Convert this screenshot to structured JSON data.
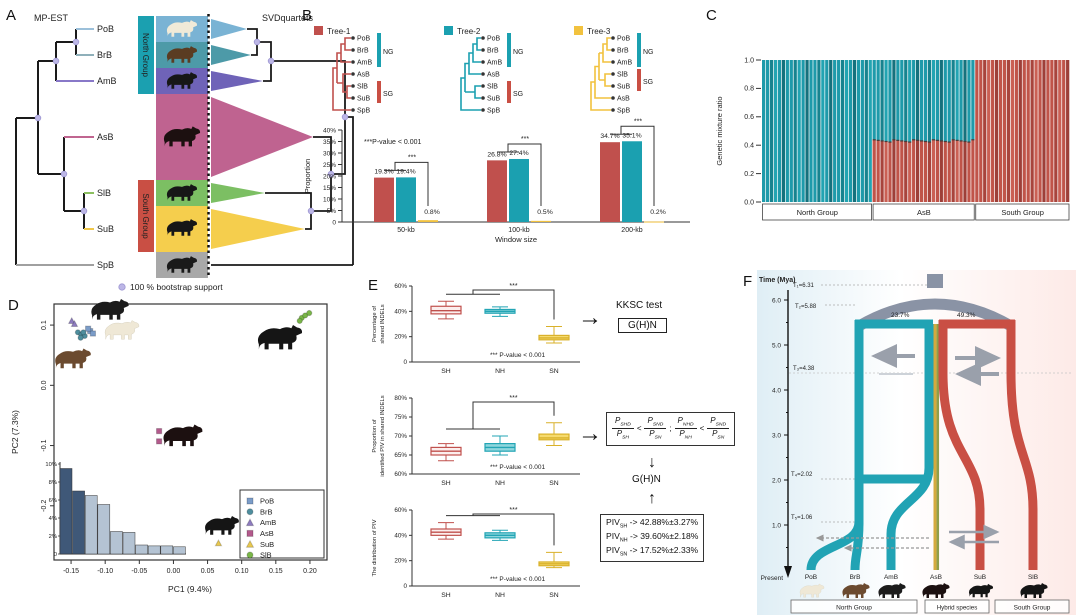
{
  "icons": {
    "arrow_right": "→",
    "arrow_down": "↓",
    "arrow_up": "↑"
  },
  "colors": {
    "teal": "#1ba0b0",
    "red": "#c0504d",
    "yellow": "#f2c23e",
    "magenta": "#bf6390",
    "purple": "#6f63b8",
    "blue": "#7ab3d4",
    "green": "#7cbf63",
    "gray": "#a8a8a8",
    "node_dot": "#bcb6e6",
    "hist_dark": "#3f5878",
    "hist_light": "#b4c3d3"
  },
  "panel_a": {
    "label": "A",
    "left_method": "MP-EST",
    "right_method": "SVDquartets",
    "tips": [
      "PoB",
      "BrB",
      "AmB",
      "AsB",
      "SlB",
      "SuB",
      "SpB"
    ],
    "north_group": "North Group",
    "south_group": "South Group",
    "bootstrap_legend": "100 % bootstrap support"
  },
  "panel_b": {
    "label": "B",
    "ng_label": "NG",
    "sg_label": "SG",
    "trees": [
      {
        "name": "Tree-1",
        "color": "#c0504d",
        "tips": [
          "PoB",
          "BrB",
          "AmB",
          "AsB",
          "SlB",
          "SuB",
          "SpB"
        ]
      },
      {
        "name": "Tree-2",
        "color": "#1ba0b0",
        "tips": [
          "PoB",
          "BrB",
          "AmB",
          "AsB",
          "SlB",
          "SuB",
          "SpB"
        ]
      },
      {
        "name": "Tree-3",
        "color": "#f2c23e",
        "tips": [
          "PoB",
          "BrB",
          "AmB",
          "SlB",
          "SuB",
          "AsB",
          "SpB"
        ]
      }
    ]
  },
  "panel_c": {
    "label": "C"
  },
  "panel_d": {
    "label": "D"
  },
  "panel_e": {
    "label": "E",
    "kksc": {
      "title": "KKSC test",
      "box": "G(H)N"
    },
    "ghn_label": "G(H)N",
    "formula": {
      "fractions": [
        {
          "num": "P",
          "num_sub": "SHD",
          "den": "P",
          "den_sub": "SH"
        },
        {
          "num": "P",
          "num_sub": "SND",
          "den": "P",
          "den_sub": "SN"
        },
        {
          "num": "P",
          "num_sub": "NHD",
          "den": "P",
          "den_sub": "NH"
        },
        {
          "num": "P",
          "num_sub": "SND",
          "den": "P",
          "den_sub": "SN"
        }
      ],
      "ops": [
        "<",
        ";",
        "<"
      ]
    },
    "piv_prefix": "PIV",
    "piv": [
      {
        "sub": "SH",
        "rest": "-> 42.88%±3.27%"
      },
      {
        "sub": "NH",
        "rest": "-> 39.60%±2.18%"
      },
      {
        "sub": "SN",
        "rest": "-> 17.52%±2.33%"
      }
    ]
  },
  "panel_f": {
    "label": "F",
    "time_axis": "Time (Mya)",
    "ticks": [
      "6.0",
      "5.0",
      "4.0",
      "3.0",
      "2.0",
      "1.0"
    ],
    "present": "Present",
    "time_marks": [
      "T₁=6.31",
      "T₂=5.88",
      "T₃=4.38",
      "T₄=2.02",
      "T₅=1.06"
    ],
    "pct_left": "23.7%",
    "pct_right": "49.3%",
    "tips": [
      "PoB",
      "BrB",
      "AmB",
      "AsB",
      "SuB",
      "SlB"
    ],
    "groups": [
      {
        "name": "North Group",
        "color": "#1ba0b0"
      },
      {
        "name": "Hybrid species",
        "color": "#333333"
      },
      {
        "name": "South Group",
        "color": "#c94f44"
      }
    ]
  },
  "chart_data": [
    {
      "id": "b_bar",
      "type": "bar",
      "categories": [
        "50-kb",
        "100-kb",
        "200-kb"
      ],
      "xlabel": "Window size",
      "ylabel": "Proportion",
      "ylim": [
        0,
        40
      ],
      "yticks": [
        "0",
        "5%",
        "10%",
        "15%",
        "20%",
        "25%",
        "30%",
        "35%",
        "40%"
      ],
      "series": [
        {
          "name": "Tree-1",
          "color": "#c0504d",
          "values": [
            19.3,
            26.8,
            34.7
          ]
        },
        {
          "name": "Tree-2",
          "color": "#1ba0b0",
          "values": [
            19.4,
            27.4,
            35.1
          ]
        },
        {
          "name": "Tree-3",
          "color": "#f2c23e",
          "values": [
            0.8,
            0.5,
            0.2
          ]
        }
      ],
      "bar_labels": [
        [
          "19.3%",
          "19.4%",
          "0.8%"
        ],
        [
          "26.8%",
          "27.4%",
          "0.5%"
        ],
        [
          "34.7%",
          "35.1%",
          "0.2%"
        ]
      ],
      "annotation": "***P-value < 0.001",
      "sig": "***",
      "legend_position": "none",
      "grid": false
    },
    {
      "id": "c_admixture",
      "type": "bar",
      "stacked": true,
      "ylabel": "Genetic mixture ratio",
      "ylim": [
        0,
        1
      ],
      "yticks": [
        "1.0",
        "0.8",
        "0.6",
        "0.4",
        "0.2",
        "0.0"
      ],
      "groups": [
        {
          "name": "North Group",
          "n": 28,
          "north": 1.0,
          "south": 0.0
        },
        {
          "name": "AsB",
          "n": 26,
          "north": 0.57,
          "south": 0.43
        },
        {
          "name": "South Group",
          "n": 24,
          "north": 0.0,
          "south": 1.0
        }
      ],
      "component_colors": {
        "north": "#1e9aaa",
        "south": "#c05449"
      }
    },
    {
      "id": "d_pca",
      "type": "scatter",
      "xlabel": "PC1 (9.4%)",
      "ylabel": "PC2 (7.3%)",
      "xlim": [
        -0.175,
        0.225
      ],
      "ylim": [
        -0.29,
        0.135
      ],
      "xticks": [
        "-0.15",
        "-0.10",
        "-0.05",
        "0.00",
        "0.05",
        "0.10",
        "0.15",
        "0.20"
      ],
      "yticks": [
        "0.1",
        "0.0",
        "-0.1",
        "-0.2"
      ],
      "series": [
        {
          "name": "PoB",
          "marker": "square",
          "color": "#7b9cc8",
          "points": [
            [
              -0.122,
              0.09
            ],
            [
              -0.118,
              0.086
            ],
            [
              -0.125,
              0.094
            ]
          ]
        },
        {
          "name": "BrB",
          "marker": "circle",
          "color": "#4e8e9e",
          "points": [
            [
              -0.14,
              0.088
            ],
            [
              -0.135,
              0.084
            ],
            [
              -0.13,
              0.082
            ],
            [
              -0.136,
              0.079
            ],
            [
              -0.132,
              0.088
            ]
          ]
        },
        {
          "name": "AmB",
          "marker": "triangle",
          "color": "#8d7bbf",
          "points": [
            [
              -0.149,
              0.107
            ],
            [
              -0.145,
              0.102
            ]
          ]
        },
        {
          "name": "AsB",
          "marker": "square",
          "color": "#b35a8c",
          "points": [
            [
              -0.021,
              -0.076
            ],
            [
              -0.021,
              -0.093
            ]
          ]
        },
        {
          "name": "SuB",
          "marker": "triangle",
          "color": "#e8c84f",
          "points": [
            [
              0.066,
              -0.262
            ]
          ]
        },
        {
          "name": "SlB",
          "marker": "circle",
          "color": "#7ab648",
          "points": [
            [
              0.188,
              0.112
            ],
            [
              0.193,
              0.116
            ],
            [
              0.199,
              0.12
            ],
            [
              0.185,
              0.107
            ]
          ]
        }
      ],
      "inset_histogram": {
        "type": "bar",
        "values": [
          9.5,
          7,
          6.5,
          5.5,
          2.5,
          2.4,
          1,
          0.9,
          0.9,
          0.8
        ],
        "yticks": [
          "0",
          "2%",
          "4%",
          "6%",
          "8%",
          "10%"
        ],
        "dark_count": 2,
        "colors": {
          "dark": "#3f5878",
          "light": "#b4c3d3"
        }
      }
    },
    {
      "id": "e_box_1",
      "type": "box",
      "ylabel": "Percentage of shared INDELs",
      "ylim": [
        0,
        60
      ],
      "yticks": [
        "0",
        "20%",
        "40%",
        "60%"
      ],
      "categories": [
        "SH",
        "NH",
        "SN"
      ],
      "colors": [
        "#c0504d",
        "#23a5b5",
        "#d9b12a"
      ],
      "fills": [
        "#fceeed",
        "#8ed6dd",
        "#f6da6e"
      ],
      "boxes": [
        {
          "min": 34,
          "q1": 38,
          "median": 40.5,
          "q3": 44,
          "max": 48
        },
        {
          "min": 36,
          "q1": 38.5,
          "median": 40,
          "q3": 41.5,
          "max": 43.5
        },
        {
          "min": 15,
          "q1": 17.5,
          "median": 19,
          "q3": 21,
          "max": 28
        }
      ],
      "pnote": "*** P-value < 0.001",
      "sig": "***"
    },
    {
      "id": "e_box_2",
      "type": "box",
      "ylabel": "Proportion of identified PIV in shared INDELs",
      "ylim": [
        60,
        80
      ],
      "yticks": [
        "60%",
        "65%",
        "70%",
        "75%",
        "80%"
      ],
      "categories": [
        "SH",
        "NH",
        "SN"
      ],
      "colors": [
        "#c0504d",
        "#23a5b5",
        "#d9b12a"
      ],
      "fills": [
        "#fceeed",
        "#8ed6dd",
        "#f6da6e"
      ],
      "boxes": [
        {
          "min": 63.5,
          "q1": 65,
          "median": 66,
          "q3": 67,
          "max": 68
        },
        {
          "min": 65,
          "q1": 66,
          "median": 67,
          "q3": 68,
          "max": 70
        },
        {
          "min": 67.5,
          "q1": 69,
          "median": 69.5,
          "q3": 70.5,
          "max": 73.5
        }
      ],
      "pnote": "*** P-value < 0.001",
      "sig": "***"
    },
    {
      "id": "e_box_3",
      "type": "box",
      "ylabel": "The distribution of PIV",
      "ylim": [
        0,
        60
      ],
      "yticks": [
        "0",
        "20%",
        "40%",
        "60%"
      ],
      "categories": [
        "SH",
        "NH",
        "SN"
      ],
      "colors": [
        "#c0504d",
        "#23a5b5",
        "#d9b12a"
      ],
      "fills": [
        "#fceeed",
        "#8ed6dd",
        "#f6da6e"
      ],
      "boxes": [
        {
          "min": 37,
          "q1": 40,
          "median": 42.5,
          "q3": 45,
          "max": 50
        },
        {
          "min": 36,
          "q1": 38,
          "median": 40,
          "q3": 42,
          "max": 44
        },
        {
          "min": 14.5,
          "q1": 16,
          "median": 17.5,
          "q3": 19,
          "max": 26.5
        }
      ],
      "pnote": "*** P-value < 0.001",
      "sig": "***"
    }
  ]
}
